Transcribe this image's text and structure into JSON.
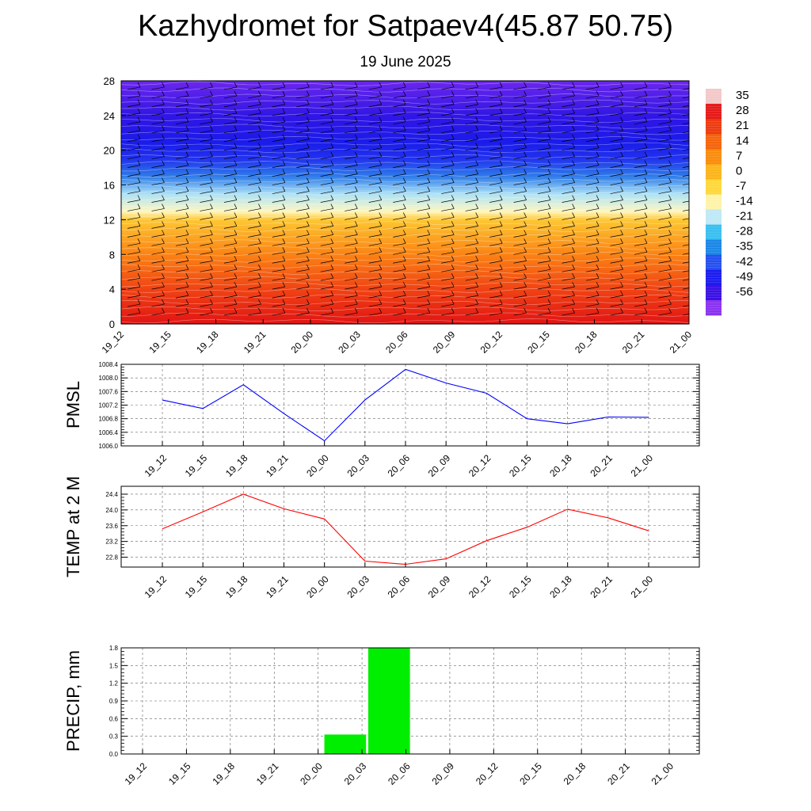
{
  "title": "Kazhydromet for Satpaev4(45.87 50.75)",
  "subtitle": "19 June 2025",
  "chart_data": [
    {
      "type": "heatmap",
      "x_ticks": [
        "19_12",
        "19_15",
        "19_18",
        "19_21",
        "20_00",
        "20_03",
        "20_06",
        "20_09",
        "20_12",
        "20_15",
        "20_18",
        "20_21",
        "21_00"
      ],
      "y_ticks": [
        0,
        4,
        8,
        12,
        16,
        20,
        24,
        28
      ],
      "ylim": [
        0,
        28
      ],
      "colorbar": {
        "labels": [
          35,
          28,
          21,
          14,
          7,
          0,
          -7,
          -14,
          -21,
          -28,
          -35,
          -42,
          -49,
          -56
        ],
        "colors": [
          "#f4c8c8",
          "#e51a1a",
          "#ee3b10",
          "#f5640d",
          "#fa8c0c",
          "#fcb419",
          "#fed83a",
          "#fff3a8",
          "#bfe8f6",
          "#38c0f0",
          "#1c87e6",
          "#2450f0",
          "#1c1cf0",
          "#3a10e6",
          "#8a33f0"
        ]
      },
      "profile_colors": [
        {
          "level": 0,
          "color": "#e01414"
        },
        {
          "level": 4,
          "color": "#f04214"
        },
        {
          "level": 8,
          "color": "#fb8214"
        },
        {
          "level": 12,
          "color": "#fdc632"
        },
        {
          "level": 13,
          "color": "#fff7bf"
        },
        {
          "level": 15,
          "color": "#aee2f8"
        },
        {
          "level": 17,
          "color": "#2f7ee8"
        },
        {
          "level": 19,
          "color": "#2234ee"
        },
        {
          "level": 21,
          "color": "#1b1bea"
        },
        {
          "level": 24,
          "color": "#3116e4"
        },
        {
          "level": 28,
          "color": "#6a26ec"
        }
      ]
    },
    {
      "type": "line",
      "ylabel": "PMSL",
      "x": [
        "19_12",
        "19_15",
        "19_18",
        "19_21",
        "20_00",
        "20_03",
        "20_06",
        "20_09",
        "20_12",
        "20_15",
        "20_18",
        "20_21",
        "21_00"
      ],
      "values": [
        1007.35,
        1007.1,
        1007.8,
        1006.95,
        1006.15,
        1007.35,
        1008.25,
        1007.85,
        1007.55,
        1006.8,
        1006.65,
        1006.85,
        1006.84
      ],
      "ylim": [
        1006.0,
        1008.4
      ],
      "y_ticks": [
        "1006.0",
        "1006.4",
        "1006.8",
        "1007.2",
        "1007.6",
        "1008.0",
        "1008.4"
      ],
      "color": "#0000ff",
      "grid": true
    },
    {
      "type": "line",
      "ylabel": "TEMP at 2 M",
      "x": [
        "19_12",
        "19_15",
        "19_18",
        "19_21",
        "20_00",
        "20_03",
        "20_06",
        "20_09",
        "20_12",
        "20_15",
        "20_18",
        "20_21",
        "21_00"
      ],
      "values": [
        23.52,
        23.95,
        24.4,
        24.03,
        23.77,
        22.7,
        22.62,
        22.76,
        23.22,
        23.56,
        24.02,
        23.8,
        23.47
      ],
      "ylim": [
        22.55,
        24.6
      ],
      "y_ticks": [
        "22.8",
        "23.2",
        "23.6",
        "24.0",
        "24.4"
      ],
      "color": "#ff0000",
      "grid": true
    },
    {
      "type": "bar",
      "ylabel": "PRECIP, mm",
      "x": [
        "19_12",
        "19_15",
        "19_18",
        "19_21",
        "20_00",
        "20_03",
        "20_06",
        "20_09",
        "20_12",
        "20_15",
        "20_18",
        "20_21",
        "21_00"
      ],
      "values": [
        0,
        0,
        0,
        0,
        0.33,
        1.8,
        0,
        0,
        0,
        0,
        0,
        0,
        0
      ],
      "ylim": [
        0,
        1.8
      ],
      "y_ticks": [
        "0.0",
        "0.3",
        "0.6",
        "0.9",
        "1.2",
        "1.5",
        "1.8"
      ],
      "color": "#00ee00",
      "grid": true
    }
  ]
}
